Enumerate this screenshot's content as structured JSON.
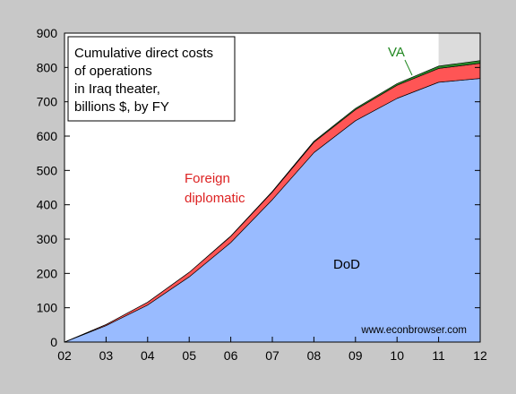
{
  "chart_data": {
    "type": "area",
    "stacked": true,
    "title_lines": [
      "Cumulative direct costs",
      "of operations",
      "in Iraq theater,",
      "billions $, by FY"
    ],
    "x": [
      "02",
      "03",
      "04",
      "05",
      "06",
      "07",
      "08",
      "09",
      "10",
      "11",
      "12"
    ],
    "xlim": [
      2002,
      2012
    ],
    "ylim": [
      0,
      900
    ],
    "y_ticks": [
      "0",
      "100",
      "200",
      "300",
      "400",
      "500",
      "600",
      "700",
      "800",
      "900"
    ],
    "series": [
      {
        "name": "DoD",
        "color": "#99bbff",
        "values": [
          0,
          48,
          108,
          190,
          290,
          415,
          552,
          645,
          710,
          757,
          768
        ]
      },
      {
        "name": "Foreign diplomatic",
        "color": "#ff5555",
        "values": [
          0,
          3,
          8,
          13,
          18,
          22,
          30,
          32,
          38,
          40,
          44
        ]
      },
      {
        "name": "VA",
        "color": "#2a8a2a",
        "values": [
          0,
          0,
          0,
          0,
          1,
          2,
          3,
          4,
          5,
          7,
          8
        ]
      }
    ],
    "series_labels": {
      "dod": "DoD",
      "foreign_line1": "Foreign",
      "foreign_line2": "diplomatic",
      "va": "VA"
    },
    "label_colors": {
      "dod": "#000000",
      "foreign": "#dd2222",
      "va": "#228822"
    },
    "shaded_region": {
      "x_from": 2011,
      "x_to": 2012,
      "color": "#dcdcdc"
    },
    "grid": false,
    "credit": "www.econbrowser.com"
  }
}
